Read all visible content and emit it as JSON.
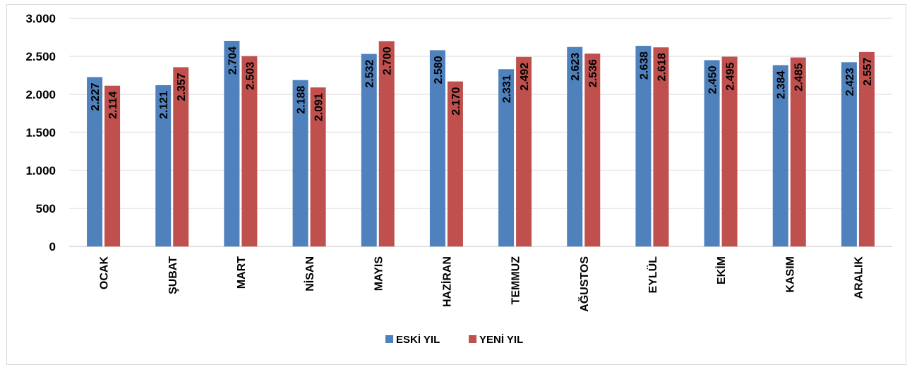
{
  "chart_data": {
    "type": "bar",
    "title": "",
    "xlabel": "",
    "ylabel": "",
    "ylim": [
      0,
      3000
    ],
    "yticks": [
      0,
      500,
      1000,
      1500,
      2000,
      2500,
      3000
    ],
    "ytick_labels": [
      "0",
      "500",
      "1.000",
      "1.500",
      "2.000",
      "2.500",
      "3.000"
    ],
    "grid": true,
    "legend_position": "bottom",
    "categories": [
      "OCAK",
      "ŞUBAT",
      "MART",
      "NİSAN",
      "MAYIS",
      "HAZİRAN",
      "TEMMUZ",
      "AĞUSTOS",
      "EYLÜL",
      "EKİM",
      "KASIM",
      "ARALIK"
    ],
    "series": [
      {
        "name": "ESKİ YIL",
        "color": "#4f81bd",
        "values": [
          2227,
          2121,
          2704,
          2188,
          2532,
          2580,
          2331,
          2623,
          2638,
          2450,
          2384,
          2423
        ],
        "labels": [
          "2.227",
          "2.121",
          "2.704",
          "2.188",
          "2.532",
          "2.580",
          "2.331",
          "2.623",
          "2.638",
          "2.450",
          "2.384",
          "2.423"
        ]
      },
      {
        "name": "YENİ YIL",
        "color": "#c0504d",
        "values": [
          2114,
          2357,
          2503,
          2091,
          2700,
          2170,
          2492,
          2536,
          2618,
          2495,
          2485,
          2557
        ],
        "labels": [
          "2.114",
          "2.357",
          "2.503",
          "2.091",
          "2.700",
          "2.170",
          "2.492",
          "2.536",
          "2.618",
          "2.495",
          "2.485",
          "2.557"
        ]
      }
    ]
  }
}
